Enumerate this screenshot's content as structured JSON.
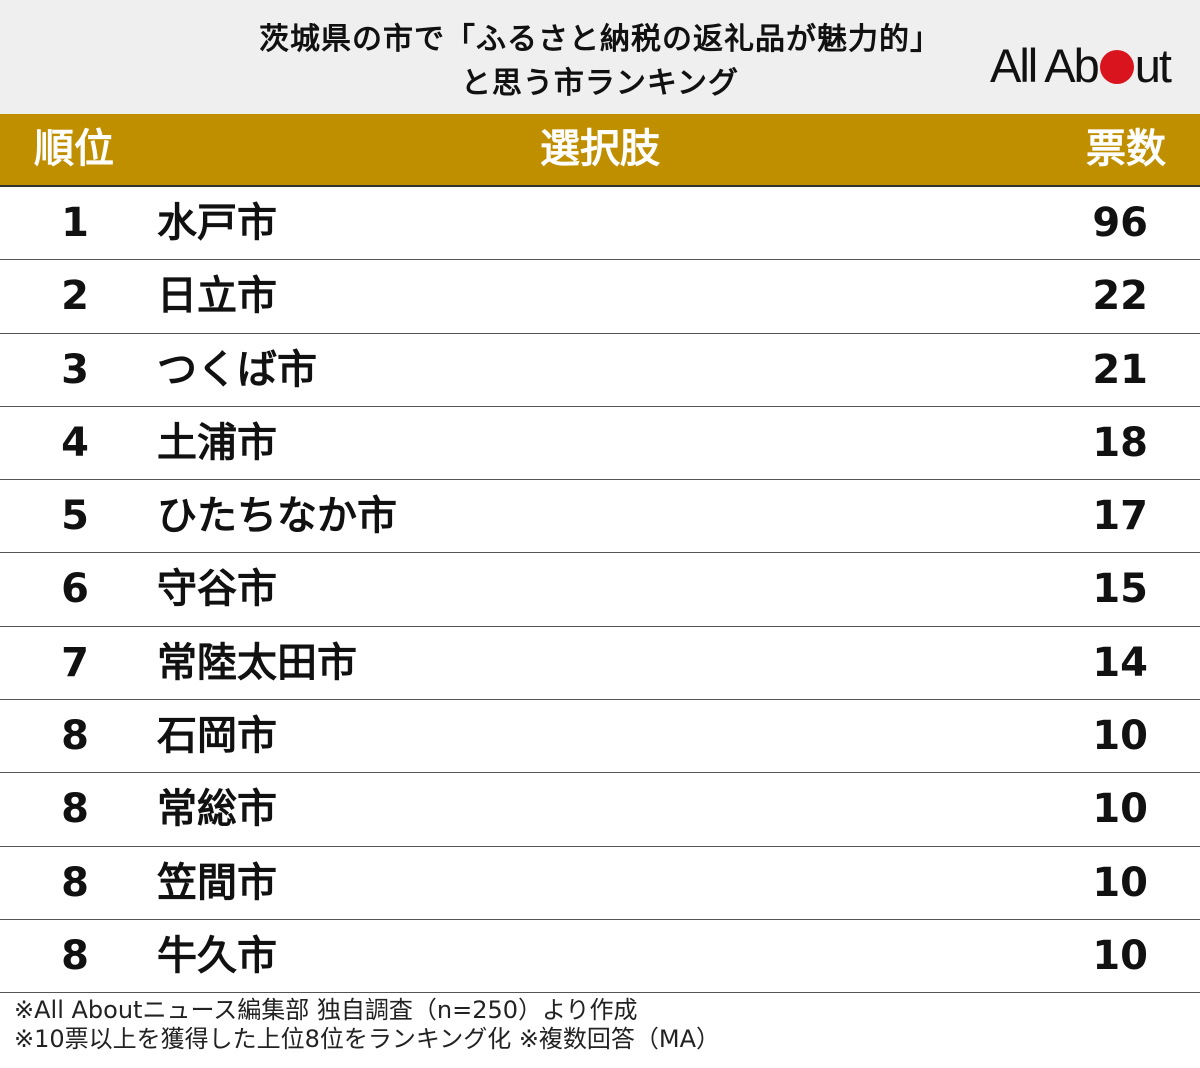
{
  "title": {
    "line1": "茨城県の市で「ふるさと納税の返礼品が魅力的」",
    "line2": "と思う市ランキング"
  },
  "logo": {
    "part1": "All",
    "part2": "Ab",
    "part3": "ut"
  },
  "colors": {
    "header_bg": "#bf8f00",
    "logo_red": "#d9141e",
    "title_bg": "#efefef"
  },
  "table": {
    "headers": {
      "rank": "順位",
      "choice": "選択肢",
      "votes": "票数"
    }
  },
  "chart_data": {
    "type": "table",
    "title": "茨城県の市で「ふるさと納税の返礼品が魅力的」と思う市ランキング",
    "columns": [
      "順位",
      "選択肢",
      "票数"
    ],
    "rows": [
      {
        "rank": "1",
        "choice": "水戸市",
        "votes": "96"
      },
      {
        "rank": "2",
        "choice": "日立市",
        "votes": "22"
      },
      {
        "rank": "3",
        "choice": "つくば市",
        "votes": "21"
      },
      {
        "rank": "4",
        "choice": "土浦市",
        "votes": "18"
      },
      {
        "rank": "5",
        "choice": "ひたちなか市",
        "votes": "17"
      },
      {
        "rank": "6",
        "choice": "守谷市",
        "votes": "15"
      },
      {
        "rank": "7",
        "choice": "常陸太田市",
        "votes": "14"
      },
      {
        "rank": "8",
        "choice": "石岡市",
        "votes": "10"
      },
      {
        "rank": "8",
        "choice": "常総市",
        "votes": "10"
      },
      {
        "rank": "8",
        "choice": "笠間市",
        "votes": "10"
      },
      {
        "rank": "8",
        "choice": "牛久市",
        "votes": "10"
      }
    ]
  },
  "footer": {
    "note1": "※All Aboutニュース編集部 独自調査（n=250）より作成",
    "note2": "※10票以上を獲得した上位8位をランキング化 ※複数回答（MA）"
  }
}
